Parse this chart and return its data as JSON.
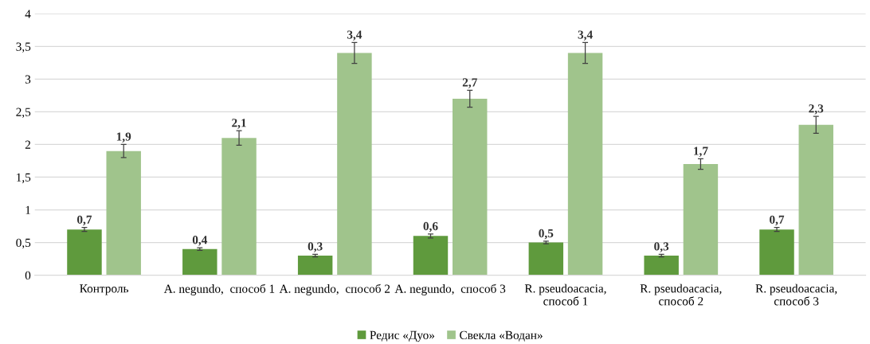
{
  "chart_data": {
    "type": "bar",
    "categories": [
      "Контроль",
      "A. negundo,  способ 1",
      "A. negundo,  способ 2",
      "A. negundo,  способ 3",
      "R. pseudoacacia,\nспособ 1",
      "R. pseudoacacia,\nспособ 2",
      "R. pseudoacacia,\nспособ 3"
    ],
    "series": [
      {
        "name": "Редис «Дуо»",
        "color": "#5f9a3d",
        "values": [
          0.7,
          0.4,
          0.3,
          0.6,
          0.5,
          0.3,
          0.7
        ],
        "value_labels": [
          "0,7",
          "0,4",
          "0,3",
          "0,6",
          "0,5",
          "0,3",
          "0,7"
        ],
        "errors": [
          0.03,
          0.02,
          0.02,
          0.03,
          0.02,
          0.02,
          0.03
        ]
      },
      {
        "name": "Свекла «Водан»",
        "color": "#a0c48c",
        "values": [
          1.9,
          2.1,
          3.4,
          2.7,
          3.4,
          1.7,
          2.3
        ],
        "value_labels": [
          "1,9",
          "2,1",
          "3,4",
          "2,7",
          "3,4",
          "1,7",
          "2,3"
        ],
        "errors": [
          0.1,
          0.11,
          0.16,
          0.13,
          0.16,
          0.08,
          0.13
        ]
      }
    ],
    "ylim": [
      0,
      4
    ],
    "yticks": [
      0,
      {
        "value": 0.5,
        "label": "0,5"
      },
      1,
      {
        "value": 1.5,
        "label": "1,5"
      },
      2,
      {
        "value": 2.5,
        "label": "2,5"
      },
      3,
      {
        "value": 3.5,
        "label": "3,5"
      },
      4
    ],
    "grid": "y",
    "legend": "bottom"
  }
}
